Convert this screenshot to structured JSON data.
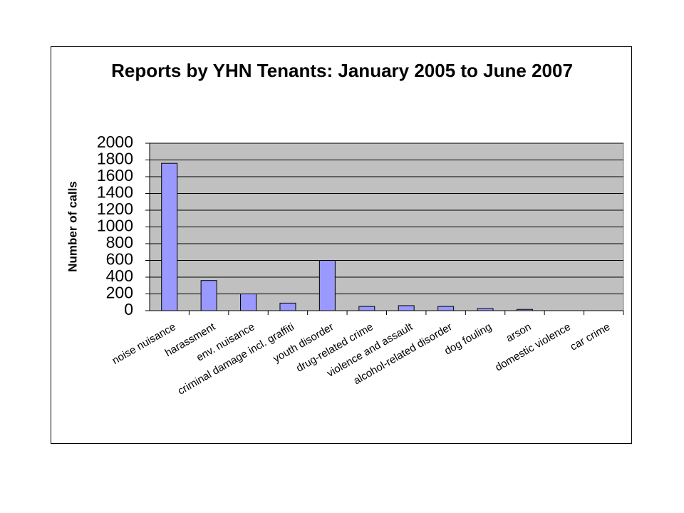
{
  "chart_data": {
    "type": "bar",
    "title": "Reports by YHN Tenants: January 2005 to June 2007",
    "y_label": "Number of calls",
    "categories": [
      "noise nuisance",
      "harassment",
      "env. nuisance",
      "criminal damage incl. graffiti",
      "youth disorder",
      "drug-related crime",
      "violence and assault",
      "alcohol-related disorder",
      "dog fouling",
      "arson",
      "domestic violence",
      "car crime"
    ],
    "values": [
      1760,
      360,
      200,
      90,
      600,
      50,
      60,
      50,
      25,
      15,
      0,
      0
    ],
    "color": "#9999ff",
    "ylim": [
      0,
      2000
    ],
    "yticks": [
      0,
      200,
      400,
      600,
      800,
      1000,
      1200,
      1400,
      1600,
      1800,
      2000
    ],
    "grid": true
  }
}
